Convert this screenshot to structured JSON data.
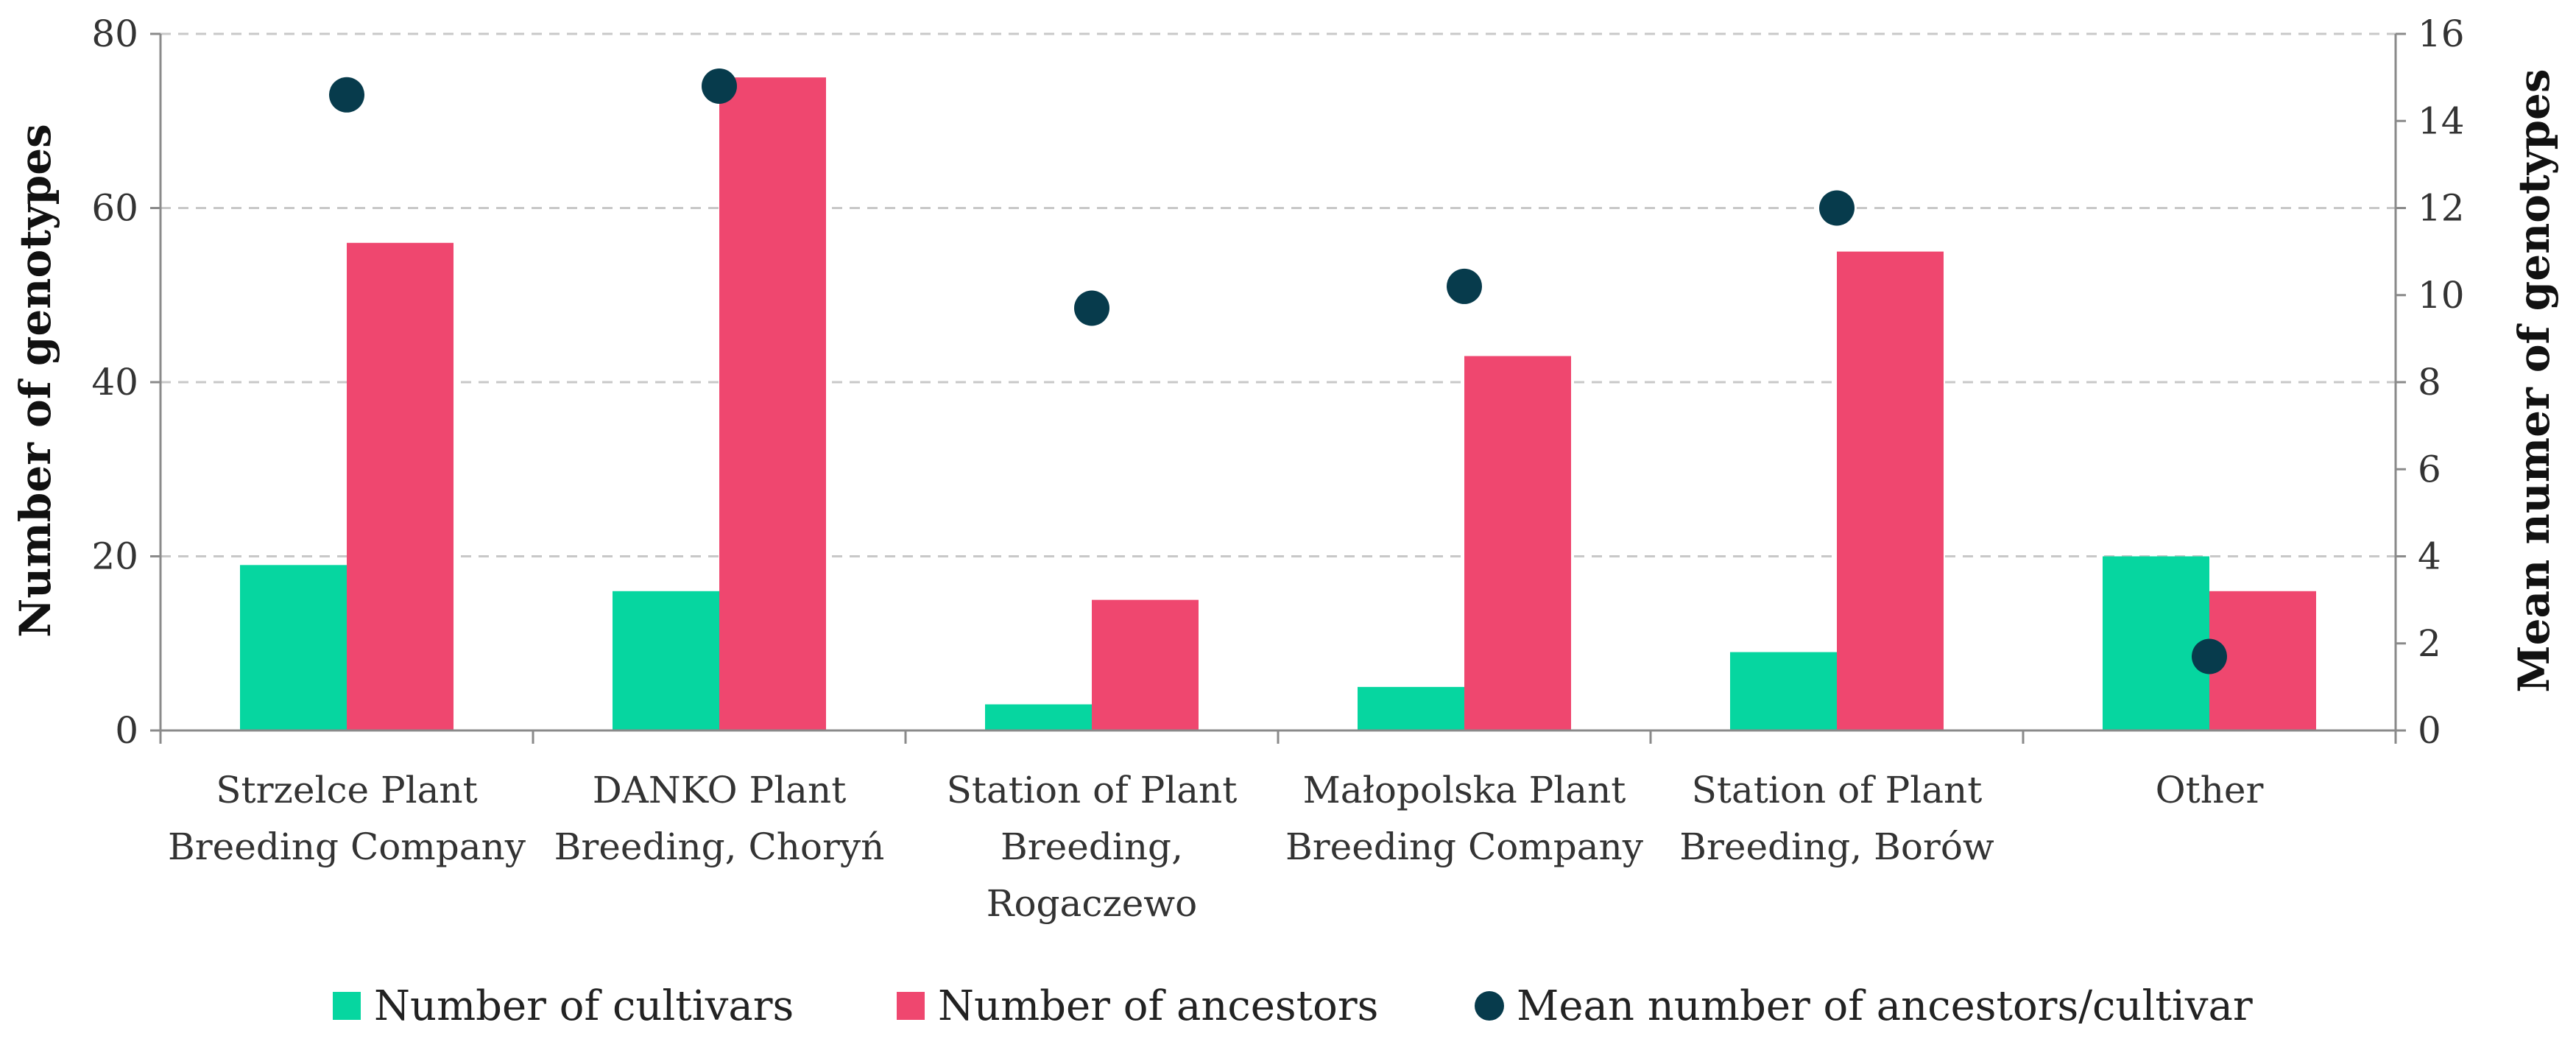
{
  "chart_data": {
    "type": "bar",
    "categories": [
      [
        "Strzelce Plant",
        "Breeding Company"
      ],
      [
        "DANKO Plant",
        "Breeding, Choryń"
      ],
      [
        "Station of Plant",
        "Breeding,",
        "Rogaczewo"
      ],
      [
        "Małopolska Plant",
        "Breeding Company"
      ],
      [
        "Station of Plant",
        "Breeding, Borów"
      ],
      [
        "Other"
      ]
    ],
    "series": [
      {
        "name": "Number of cultivars",
        "type": "bar",
        "axis": "left",
        "color": "#06d6a0",
        "values": [
          19,
          16,
          3,
          5,
          9,
          20
        ]
      },
      {
        "name": "Number of ancestors",
        "type": "bar",
        "axis": "left",
        "color": "#ef476f",
        "values": [
          56,
          75,
          15,
          43,
          55,
          16
        ]
      },
      {
        "name": "Mean number of ancestors/cultivar",
        "type": "scatter",
        "axis": "right",
        "color": "#073b4c",
        "values": [
          14.6,
          14.8,
          9.7,
          10.2,
          12.0,
          1.7
        ]
      }
    ],
    "ylabel": "Number of genotypes",
    "y2label": "Mean numer of genotypes",
    "ylim": [
      0,
      80
    ],
    "y2lim": [
      0,
      16
    ],
    "yticks": [
      "0",
      "20",
      "40",
      "60",
      "80"
    ],
    "y2ticks": [
      "0",
      "2",
      "4",
      "6",
      "8",
      "10",
      "12",
      "14",
      "16"
    ],
    "grid": true,
    "legend_position": "bottom"
  }
}
